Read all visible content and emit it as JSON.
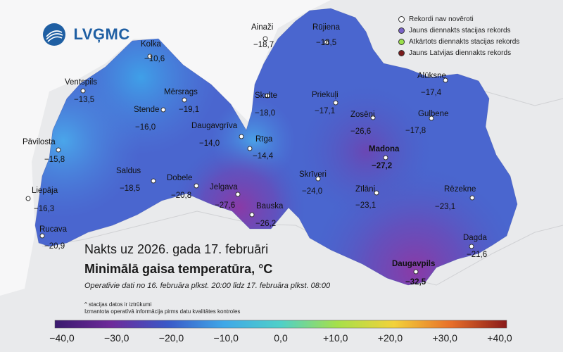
{
  "logo": {
    "text": "LVĢMC"
  },
  "legend": [
    {
      "label": "Rekordi nav novēroti",
      "color": "#ffffff"
    },
    {
      "label": "Jauns diennakts stacijas rekords",
      "color": "#7a63c7"
    },
    {
      "label": "Atkārtots diennakts stacijas rekords",
      "color": "#9be04a"
    },
    {
      "label": "Jauns Latvijas diennakts rekords",
      "color": "#7a1a1a"
    }
  ],
  "stations": [
    {
      "name": "Kolka",
      "value": "−10,6"
    },
    {
      "name": "Ainaži",
      "value": "−18,7"
    },
    {
      "name": "Rūjiena",
      "value": "−18,5"
    },
    {
      "name": "Ventspils",
      "value": "−13,5"
    },
    {
      "name": "Mērsrags",
      "value": "−19,1"
    },
    {
      "name": "Stende",
      "value": "−16,0"
    },
    {
      "name": "Skulte",
      "value": "−18,0"
    },
    {
      "name": "Priekuļi",
      "value": "−17,1"
    },
    {
      "name": "Alūksne",
      "value": "−17,4"
    },
    {
      "name": "Zosēni",
      "value": "−26,6"
    },
    {
      "name": "Gulbene",
      "value": "−17,8"
    },
    {
      "name": "Daugavgrīva",
      "value": "−14,0"
    },
    {
      "name": "Rīga",
      "value": "−14,4"
    },
    {
      "name": "Pāvilosta",
      "value": "−15,8"
    },
    {
      "name": "Madona",
      "value": "−27,2"
    },
    {
      "name": "Saldus",
      "value": "−18,5"
    },
    {
      "name": "Dobele",
      "value": "−20,8"
    },
    {
      "name": "Jelgava",
      "value": "−27,6"
    },
    {
      "name": "Skrīveri",
      "value": "−24,0"
    },
    {
      "name": "Liepāja",
      "value": "−16,3"
    },
    {
      "name": "Zīlāni",
      "value": "−23,1"
    },
    {
      "name": "Rēzekne",
      "value": "−23,1"
    },
    {
      "name": "Bauska",
      "value": "−26,2"
    },
    {
      "name": "Rucava",
      "value": "−20,9"
    },
    {
      "name": "Dagda",
      "value": "−21,6"
    },
    {
      "name": "Daugavpils",
      "value": "−32,5"
    }
  ],
  "title": {
    "line1": "Nakts uz 2026. gada 17. februāri",
    "line2": "Minimālā gaisa temperatūra, °C",
    "subtitle": "Operatīvie dati no 16. februāra plkst. 20:00 līdz 17. februāra plkst. 08:00"
  },
  "notes": {
    "line1": "^ stacijas datos ir iztrūkumi",
    "line2": "Izmantota operatīvā informācija pirms datu kvalitātes kontroles"
  },
  "scale": {
    "ticks": [
      "−40,0",
      "−30,0",
      "−20,0",
      "−10,0",
      "0,0",
      "+10,0",
      "+20,0",
      "+30,0",
      "+40,0"
    ],
    "colors": [
      "#3a1a6e",
      "#6e2a9a",
      "#3a59c8",
      "#3fa8e8",
      "#4fd0c8",
      "#a6e04a",
      "#f2d23a",
      "#e8702a",
      "#8a1a1a"
    ]
  }
}
